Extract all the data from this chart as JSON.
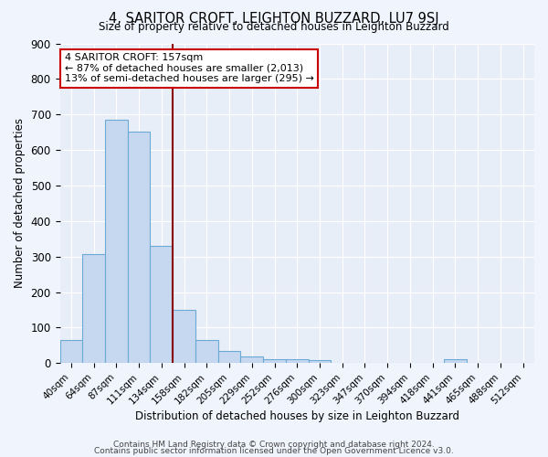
{
  "title": "4, SARITOR CROFT, LEIGHTON BUZZARD, LU7 9SJ",
  "subtitle": "Size of property relative to detached houses in Leighton Buzzard",
  "xlabel": "Distribution of detached houses by size in Leighton Buzzard",
  "ylabel": "Number of detached properties",
  "categories": [
    "40sqm",
    "64sqm",
    "87sqm",
    "111sqm",
    "134sqm",
    "158sqm",
    "182sqm",
    "205sqm",
    "229sqm",
    "252sqm",
    "276sqm",
    "300sqm",
    "323sqm",
    "347sqm",
    "370sqm",
    "394sqm",
    "418sqm",
    "441sqm",
    "465sqm",
    "488sqm",
    "512sqm"
  ],
  "values": [
    65,
    308,
    685,
    652,
    330,
    150,
    65,
    35,
    20,
    12,
    12,
    8,
    0,
    0,
    0,
    0,
    0,
    10,
    0,
    0,
    0
  ],
  "bar_color": "#c5d8ef",
  "bar_edge_color": "#6aaad4",
  "vline_color": "#8b0000",
  "vline_x_index": 5,
  "annotation_text": "4 SARITOR CROFT: 157sqm\n← 87% of detached houses are smaller (2,013)\n13% of semi-detached houses are larger (295) →",
  "annotation_box_facecolor": "#ffffff",
  "annotation_box_edgecolor": "#cc0000",
  "ylim": [
    0,
    900
  ],
  "yticks": [
    0,
    100,
    200,
    300,
    400,
    500,
    600,
    700,
    800,
    900
  ],
  "bg_color": "#e8eef8",
  "fig_bg_color": "#f0f4fc",
  "footer1": "Contains HM Land Registry data © Crown copyright and database right 2024.",
  "footer2": "Contains public sector information licensed under the Open Government Licence v3.0."
}
